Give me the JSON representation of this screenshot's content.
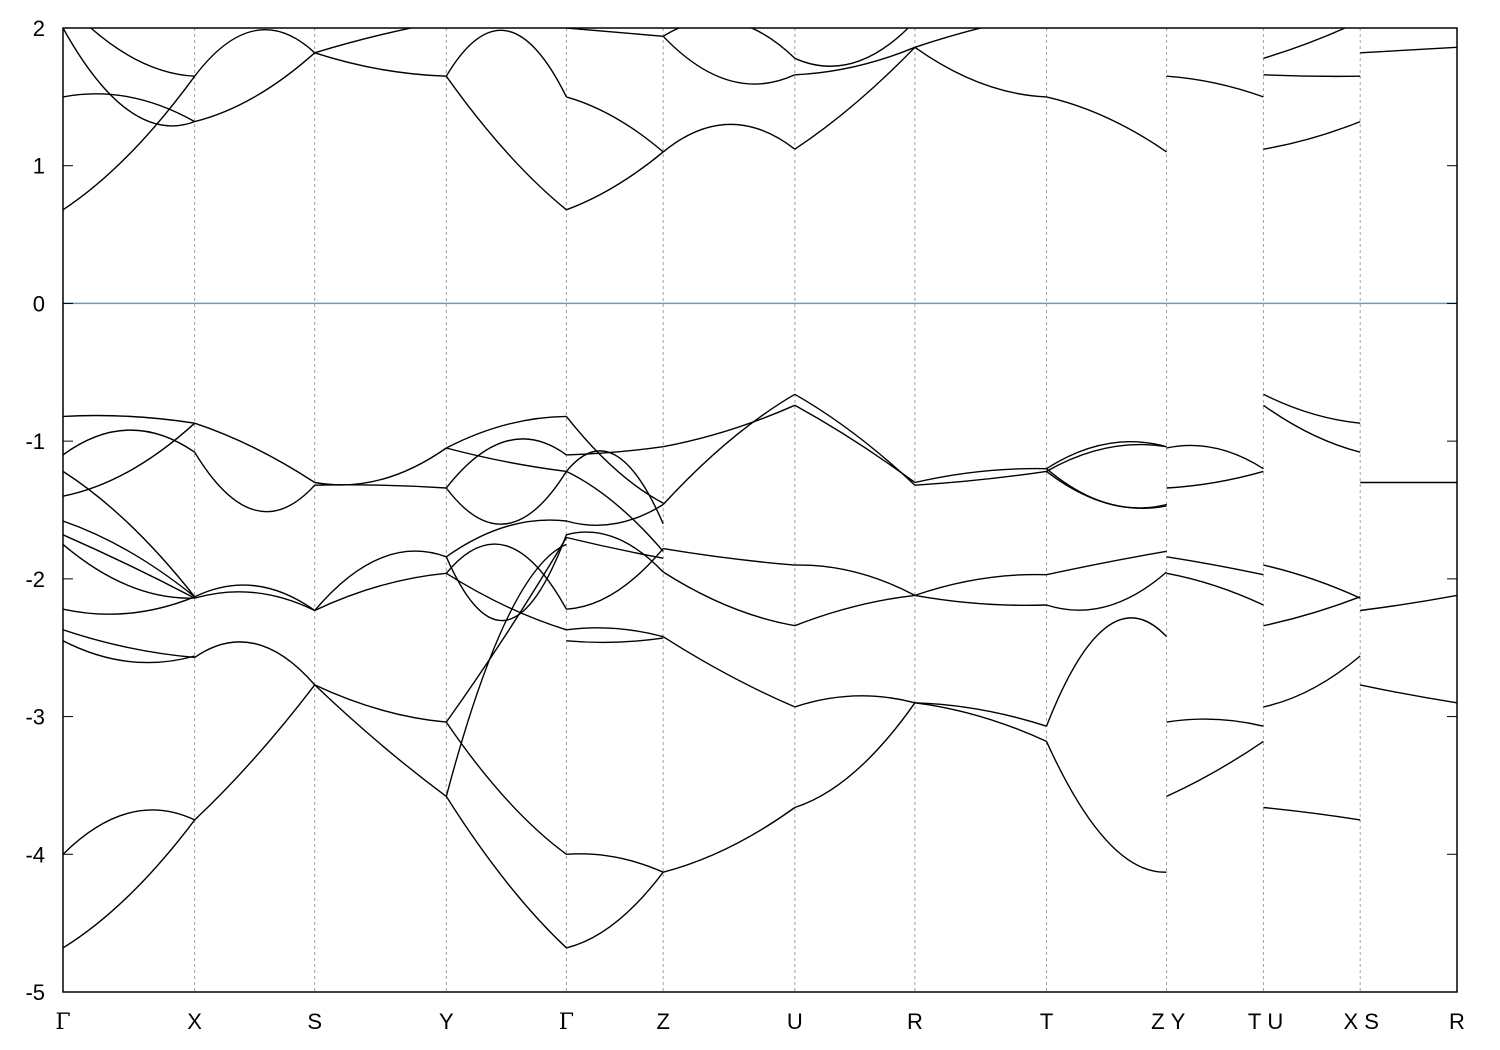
{
  "chart_data": {
    "type": "line",
    "title": "",
    "xlabel": "",
    "ylabel": "",
    "ylim": [
      -5,
      2
    ],
    "yticks": [
      2,
      1,
      0,
      -1,
      -2,
      -3,
      -4,
      -5
    ],
    "fermi_level": 0,
    "fermi_color": "#4fa8c8",
    "band_color": "#000000",
    "grid": "vertical dashed lines at high-symmetry points",
    "kpoints": [
      {
        "label": "Γ",
        "x": 0
      },
      {
        "label": "X",
        "x": 1.36
      },
      {
        "label": "S",
        "x": 2.6
      },
      {
        "label": "Y",
        "x": 3.96
      },
      {
        "label": "Γ",
        "x": 5.2
      },
      {
        "label": "Z",
        "x": 6.2
      },
      {
        "label": "U",
        "x": 7.56
      },
      {
        "label": "R",
        "x": 8.8
      },
      {
        "label": "T",
        "x": 10.16
      },
      {
        "label": "Z",
        "x": 11.4
      },
      {
        "label": "Y",
        "x": 11.4
      },
      {
        "label": "T",
        "x": 12.4
      },
      {
        "label": "U",
        "x": 12.4
      },
      {
        "label": "X",
        "x": 13.4
      },
      {
        "label": "S",
        "x": 13.4
      },
      {
        "label": "R",
        "x": 14.4
      }
    ],
    "segments": [
      {
        "from": "Γ",
        "to": "X",
        "x0": 0,
        "x1": 1.36,
        "bands": [
          [
            0.68,
            1.08,
            1.65
          ],
          [
            1.5,
            1.5,
            1.32
          ],
          [
            2.0,
            1.4,
            1.32
          ],
          [
            2.2,
            1.8,
            1.65
          ],
          [
            -0.82,
            -0.82,
            -0.87
          ],
          [
            -1.1,
            -0.92,
            -1.08
          ],
          [
            -1.22,
            -1.6,
            -2.13
          ],
          [
            -1.4,
            -1.22,
            -0.87
          ],
          [
            -1.58,
            -1.8,
            -2.13
          ],
          [
            -1.68,
            -1.9,
            -2.14
          ],
          [
            -1.75,
            -2.05,
            -2.14
          ],
          [
            -2.22,
            -2.25,
            -2.13
          ],
          [
            -2.37,
            -2.5,
            -2.57
          ],
          [
            -2.45,
            -2.6,
            -2.56
          ],
          [
            -4.0,
            -3.7,
            -3.75
          ],
          [
            -4.68,
            -4.3,
            -3.75
          ]
        ]
      },
      {
        "from": "X",
        "to": "S",
        "x0": 1.36,
        "x1": 2.6,
        "bands": [
          [
            1.65,
            1.98,
            1.82
          ],
          [
            1.32,
            1.5,
            1.82
          ],
          [
            -0.87,
            -1.05,
            -1.3
          ],
          [
            -1.08,
            -1.5,
            -1.32
          ],
          [
            -2.13,
            -2.05,
            -2.23
          ],
          [
            -2.14,
            -2.1,
            -2.23
          ],
          [
            -2.57,
            -2.47,
            -2.77
          ],
          [
            -3.75,
            -3.3,
            -2.77
          ]
        ]
      },
      {
        "from": "S",
        "to": "Y",
        "x0": 2.6,
        "x1": 3.96,
        "bands": [
          [
            1.82,
            1.95,
            2.05
          ],
          [
            1.82,
            1.7,
            1.65
          ],
          [
            -1.3,
            -1.28,
            -1.05
          ],
          [
            -1.32,
            -1.32,
            -1.34
          ],
          [
            -2.23,
            -1.85,
            -1.84
          ],
          [
            -2.23,
            -2.05,
            -1.96
          ],
          [
            -2.77,
            -2.95,
            -3.04
          ],
          [
            -2.77,
            -3.2,
            -3.58
          ]
        ]
      },
      {
        "from": "Y",
        "to": "Γ",
        "x0": 3.96,
        "x1": 5.2,
        "bands": [
          [
            1.65,
            1.98,
            1.5
          ],
          [
            1.65,
            1.1,
            0.68
          ],
          [
            -1.05,
            -0.88,
            -0.82
          ],
          [
            -1.05,
            -1.15,
            -1.22
          ],
          [
            -1.34,
            -1.0,
            -1.1
          ],
          [
            -1.34,
            -1.6,
            -1.22
          ],
          [
            -1.84,
            -1.62,
            -1.58
          ],
          [
            -1.84,
            -2.3,
            -1.68
          ],
          [
            -1.96,
            -1.76,
            -2.22
          ],
          [
            -1.96,
            -2.2,
            -2.37
          ],
          [
            -3.04,
            -2.4,
            -1.7
          ],
          [
            -3.58,
            -2.3,
            -1.75
          ],
          [
            -3.04,
            -3.6,
            -4.0
          ],
          [
            -3.58,
            -4.2,
            -4.68
          ]
        ]
      },
      {
        "from": "Γ",
        "to": "Z",
        "x0": 5.2,
        "x1": 6.2,
        "bands": [
          [
            0.68,
            0.85,
            1.1
          ],
          [
            1.5,
            1.35,
            1.1
          ],
          [
            2.0,
            1.97,
            1.94
          ],
          [
            -0.82,
            -1.2,
            -1.45
          ],
          [
            -1.1,
            -1.08,
            -1.04
          ],
          [
            -1.22,
            -1.1,
            -1.6
          ],
          [
            -1.22,
            -1.45,
            -1.8
          ],
          [
            -1.58,
            -1.6,
            -1.46
          ],
          [
            -1.68,
            -1.7,
            -1.95
          ],
          [
            -1.7,
            -1.78,
            -1.85
          ],
          [
            -2.22,
            -2.1,
            -1.78
          ],
          [
            -2.37,
            -2.36,
            -2.42
          ],
          [
            -2.45,
            -2.46,
            -2.43
          ],
          [
            -4.0,
            -4.02,
            -4.13
          ],
          [
            -4.68,
            -4.5,
            -4.13
          ]
        ]
      },
      {
        "from": "Z",
        "to": "U",
        "x0": 6.2,
        "x1": 7.56,
        "bands": [
          [
            1.1,
            1.3,
            1.12
          ],
          [
            1.94,
            1.62,
            1.66
          ],
          [
            1.94,
            2.05,
            1.78
          ],
          [
            -1.04,
            -0.92,
            -0.74
          ],
          [
            -1.46,
            -1.0,
            -0.66
          ],
          [
            -1.78,
            -1.85,
            -1.9
          ],
          [
            -1.95,
            -2.2,
            -2.34
          ],
          [
            -2.42,
            -2.7,
            -2.93
          ],
          [
            -4.13,
            -3.95,
            -3.66
          ]
        ]
      },
      {
        "from": "U",
        "to": "R",
        "x0": 7.56,
        "x1": 8.8,
        "bands": [
          [
            1.12,
            1.45,
            1.86
          ],
          [
            1.66,
            1.72,
            1.86
          ],
          [
            1.78,
            1.75,
            2.05
          ],
          [
            -0.74,
            -1.0,
            -1.3
          ],
          [
            -0.66,
            -0.95,
            -1.32
          ],
          [
            -1.9,
            -1.95,
            -2.12
          ],
          [
            -2.34,
            -2.2,
            -2.12
          ],
          [
            -2.93,
            -2.85,
            -2.9
          ],
          [
            -3.66,
            -3.4,
            -2.9
          ]
        ]
      },
      {
        "from": "R",
        "to": "T",
        "x0": 8.8,
        "x1": 10.16,
        "bands": [
          [
            1.86,
            1.6,
            1.5
          ],
          [
            1.86,
            2.0,
            2.1
          ],
          [
            -1.3,
            -1.22,
            -1.2
          ],
          [
            -1.32,
            -1.28,
            -1.22
          ],
          [
            -2.12,
            -2.18,
            -2.19
          ],
          [
            -2.12,
            -2.0,
            -1.97
          ],
          [
            -2.9,
            -2.95,
            -3.07
          ],
          [
            -2.9,
            -3.0,
            -3.18
          ]
        ]
      },
      {
        "from": "T",
        "to": "Z",
        "x0": 10.16,
        "x1": 11.4,
        "bands": [
          [
            1.5,
            1.35,
            1.1
          ],
          [
            -1.2,
            -1.02,
            -1.04
          ],
          [
            -1.2,
            -1.45,
            -1.46
          ],
          [
            -1.22,
            -1.05,
            -1.04
          ],
          [
            -1.22,
            -1.45,
            -1.47
          ],
          [
            -1.97,
            -1.88,
            -1.8
          ],
          [
            -2.19,
            -2.2,
            -1.95
          ],
          [
            -3.07,
            -2.35,
            -2.42
          ],
          [
            -3.18,
            -3.9,
            -4.13
          ]
        ]
      },
      {
        "from": "Y",
        "to": "T",
        "x0": 11.4,
        "x1": 12.4,
        "bands": [
          [
            1.65,
            1.6,
            1.5
          ],
          [
            -1.05,
            -1.05,
            -1.2
          ],
          [
            -1.34,
            -1.3,
            -1.22
          ],
          [
            -1.84,
            -1.9,
            -1.97
          ],
          [
            -1.96,
            -2.05,
            -2.19
          ],
          [
            -3.04,
            -3.02,
            -3.07
          ],
          [
            -3.58,
            -3.4,
            -3.18
          ]
        ]
      },
      {
        "from": "U",
        "to": "X",
        "x0": 12.4,
        "x1": 13.4,
        "bands": [
          [
            1.12,
            1.2,
            1.32
          ],
          [
            1.66,
            1.65,
            1.65
          ],
          [
            1.78,
            1.9,
            2.05
          ],
          [
            -0.66,
            -0.8,
            -0.87
          ],
          [
            -0.74,
            -0.95,
            -1.08
          ],
          [
            -1.9,
            -2.0,
            -2.14
          ],
          [
            -2.34,
            -2.25,
            -2.13
          ],
          [
            -2.93,
            -2.8,
            -2.56
          ],
          [
            -3.66,
            -3.7,
            -3.75
          ]
        ]
      },
      {
        "from": "S",
        "to": "R",
        "x0": 13.4,
        "x1": 14.4,
        "bands": [
          [
            1.82,
            1.84,
            1.86
          ],
          [
            -1.3,
            -1.3,
            -1.3
          ],
          [
            -2.23,
            -2.18,
            -2.12
          ],
          [
            -2.77,
            -2.84,
            -2.9
          ]
        ]
      }
    ]
  }
}
